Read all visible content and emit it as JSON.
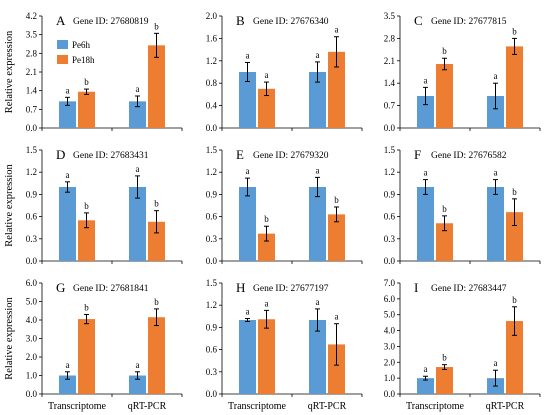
{
  "colors": {
    "pe6h": "#5b9bd5",
    "pe18h": "#ed7d31"
  },
  "chart_data": [
    {
      "type": "bar",
      "panel": "A",
      "title": "Gene ID: 27680819",
      "ylabel": "Relative expression",
      "categories": [
        "Transcriptome",
        "qRT-PCR"
      ],
      "ylim": [
        0,
        4.2
      ],
      "yticks": [
        "0.0",
        "0.7",
        "1.4",
        "2.1",
        "2.8",
        "3.5",
        "4.2"
      ],
      "legend": [
        "Pe6h",
        "Pe18h"
      ],
      "series": [
        {
          "name": "Pe6h",
          "values": [
            1.0,
            1.0
          ],
          "errors": [
            0.15,
            0.2
          ],
          "sig": [
            "a",
            "a"
          ]
        },
        {
          "name": "Pe18h",
          "values": [
            1.36,
            3.1
          ],
          "errors": [
            0.1,
            0.45
          ],
          "sig": [
            "b",
            "b"
          ]
        }
      ]
    },
    {
      "type": "bar",
      "panel": "B",
      "title": "Gene ID: 27676340",
      "ylabel": "",
      "categories": [
        "Transcriptome",
        "qRT-PCR"
      ],
      "ylim": [
        0,
        2.0
      ],
      "yticks": [
        "0.0",
        "0.4",
        "0.8",
        "1.2",
        "1.6",
        "2.0"
      ],
      "series": [
        {
          "name": "Pe6h",
          "values": [
            1.0,
            1.0
          ],
          "errors": [
            0.17,
            0.18
          ],
          "sig": [
            "a",
            "a"
          ]
        },
        {
          "name": "Pe18h",
          "values": [
            0.7,
            1.36
          ],
          "errors": [
            0.12,
            0.27
          ],
          "sig": [
            "a",
            "a"
          ]
        }
      ]
    },
    {
      "type": "bar",
      "panel": "C",
      "title": "Gene ID: 27677815",
      "ylabel": "",
      "categories": [
        "Transcriptome",
        "qRT-PCR"
      ],
      "ylim": [
        0,
        3.5
      ],
      "yticks": [
        "0.0",
        "0.7",
        "1.4",
        "2.1",
        "2.8",
        "3.5"
      ],
      "series": [
        {
          "name": "Pe6h",
          "values": [
            1.0,
            1.0
          ],
          "errors": [
            0.27,
            0.4
          ],
          "sig": [
            "a",
            "a"
          ]
        },
        {
          "name": "Pe18h",
          "values": [
            2.0,
            2.55
          ],
          "errors": [
            0.18,
            0.25
          ],
          "sig": [
            "b",
            "b"
          ]
        }
      ]
    },
    {
      "type": "bar",
      "panel": "D",
      "title": "Gene ID: 27683431",
      "ylabel": "Relative expression",
      "categories": [
        "Transcriptome",
        "qRT-PCR"
      ],
      "ylim": [
        0,
        1.5
      ],
      "yticks": [
        "0.0",
        "0.3",
        "0.6",
        "0.9",
        "1.2",
        "1.5"
      ],
      "series": [
        {
          "name": "Pe6h",
          "values": [
            1.0,
            1.0
          ],
          "errors": [
            0.07,
            0.15
          ],
          "sig": [
            "a",
            "a"
          ]
        },
        {
          "name": "Pe18h",
          "values": [
            0.55,
            0.53
          ],
          "errors": [
            0.1,
            0.15
          ],
          "sig": [
            "b",
            "b"
          ]
        }
      ]
    },
    {
      "type": "bar",
      "panel": "E",
      "title": "Gene ID: 27679320",
      "ylabel": "",
      "categories": [
        "Transcriptome",
        "qRT-PCR"
      ],
      "ylim": [
        0,
        1.5
      ],
      "yticks": [
        "0.0",
        "0.3",
        "0.6",
        "0.9",
        "1.2",
        "1.5"
      ],
      "series": [
        {
          "name": "Pe6h",
          "values": [
            1.0,
            1.0
          ],
          "errors": [
            0.12,
            0.13
          ],
          "sig": [
            "a",
            "a"
          ]
        },
        {
          "name": "Pe18h",
          "values": [
            0.37,
            0.63
          ],
          "errors": [
            0.1,
            0.1
          ],
          "sig": [
            "b",
            "b"
          ]
        }
      ]
    },
    {
      "type": "bar",
      "panel": "F",
      "title": "Gene ID: 27676582",
      "ylabel": "",
      "categories": [
        "Transcriptome",
        "qRT-PCR"
      ],
      "ylim": [
        0,
        1.5
      ],
      "yticks": [
        "0.0",
        "0.3",
        "0.6",
        "0.9",
        "1.2",
        "1.5"
      ],
      "series": [
        {
          "name": "Pe6h",
          "values": [
            1.0,
            1.0
          ],
          "errors": [
            0.1,
            0.1
          ],
          "sig": [
            "a",
            "a"
          ]
        },
        {
          "name": "Pe18h",
          "values": [
            0.51,
            0.66
          ],
          "errors": [
            0.1,
            0.18
          ],
          "sig": [
            "b",
            "b"
          ]
        }
      ]
    },
    {
      "type": "bar",
      "panel": "G",
      "title": "Gene ID: 27681841",
      "ylabel": "Relative expression",
      "categories": [
        "Transcriptome",
        "qRT-PCR"
      ],
      "ylim": [
        0,
        6.0
      ],
      "yticks": [
        "0.0",
        "1.0",
        "2.0",
        "3.0",
        "4.0",
        "5.0",
        "6.0"
      ],
      "series": [
        {
          "name": "Pe6h",
          "values": [
            1.0,
            1.0
          ],
          "errors": [
            0.2,
            0.2
          ],
          "sig": [
            "a",
            "a"
          ]
        },
        {
          "name": "Pe18h",
          "values": [
            4.05,
            4.15
          ],
          "errors": [
            0.25,
            0.45
          ],
          "sig": [
            "b",
            "b"
          ]
        }
      ]
    },
    {
      "type": "bar",
      "panel": "H",
      "title": "Gene ID: 27677197",
      "ylabel": "",
      "categories": [
        "Transcriptome",
        "qRT-PCR"
      ],
      "ylim": [
        0,
        1.5
      ],
      "yticks": [
        "0.0",
        "0.3",
        "0.6",
        "0.9",
        "1.2",
        "1.5"
      ],
      "series": [
        {
          "name": "Pe6h",
          "values": [
            1.0,
            1.0
          ],
          "errors": [
            0.02,
            0.15
          ],
          "sig": [
            "a",
            "a"
          ]
        },
        {
          "name": "Pe18h",
          "values": [
            1.01,
            0.67
          ],
          "errors": [
            0.12,
            0.28
          ],
          "sig": [
            "a",
            "a"
          ]
        }
      ]
    },
    {
      "type": "bar",
      "panel": "I",
      "title": "Gene ID: 27683447",
      "ylabel": "",
      "categories": [
        "Transcriptome",
        "qRT-PCR"
      ],
      "ylim": [
        0,
        7.0
      ],
      "yticks": [
        "0.0",
        "1.0",
        "2.0",
        "3.0",
        "4.0",
        "5.0",
        "6.0",
        "7.0"
      ],
      "series": [
        {
          "name": "Pe6h",
          "values": [
            1.0,
            1.0
          ],
          "errors": [
            0.12,
            0.5
          ],
          "sig": [
            "a",
            "a"
          ]
        },
        {
          "name": "Pe18h",
          "values": [
            1.7,
            4.6
          ],
          "errors": [
            0.15,
            0.9
          ],
          "sig": [
            "b",
            "b"
          ]
        }
      ]
    }
  ]
}
